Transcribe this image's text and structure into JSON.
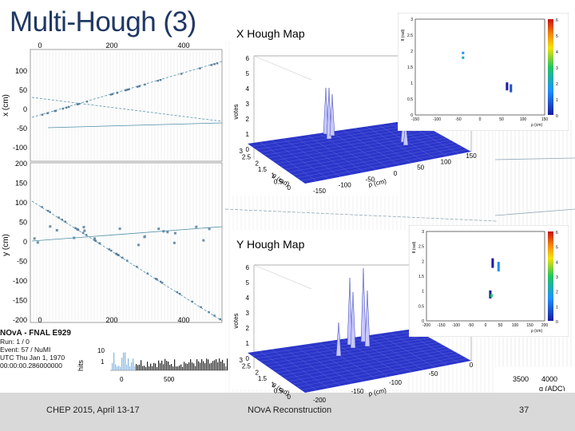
{
  "slide": {
    "title": "Multi-Hough (3)",
    "footer_left": "CHEP 2015, April 13-17",
    "footer_center": "NOvA Reconstruction",
    "page_number": "37"
  },
  "hough_x": {
    "label": "X Hough Map"
  },
  "hough_y": {
    "label": "Y Hough Map"
  },
  "event_display": {
    "top_view": {
      "ylabel": "x (cm)",
      "x_ticks": [
        "0",
        "200",
        "400"
      ],
      "y_ticks": [
        "100",
        "50",
        "0",
        "-50",
        "-100"
      ]
    },
    "side_view": {
      "ylabel": "y (cm)",
      "x_ticks": [
        "0",
        "200",
        "400"
      ],
      "y_ticks": [
        "200",
        "150",
        "100",
        "50",
        "0",
        "-50",
        "-100",
        "-150",
        "-200"
      ]
    },
    "info": {
      "experiment": "NOvA - FNAL E929",
      "run": "Run: 1 / 0",
      "event": "Event: 57 / NuMI",
      "utc": "UTC Thu Jan 1, 1970",
      "time": "00:00:00.286000000"
    },
    "adc_hist": {
      "ylabel": "hits",
      "xlabel": "q (ADC)",
      "x_ticks": [
        "0",
        "500",
        "3500",
        "4000"
      ],
      "y_ticks": [
        "10",
        "1"
      ]
    }
  },
  "lego_x": {
    "zlabel": "votes",
    "z_ticks": [
      "6",
      "5",
      "4",
      "3",
      "2",
      "1",
      "0"
    ],
    "theta_label": "θ (rad)",
    "rho_label": "ρ (cm)",
    "theta_ticks": [
      "3",
      "2.5",
      "2",
      "1.5",
      "1",
      "0.5",
      "0"
    ],
    "rho_ticks": [
      "-150",
      "-100",
      "-50",
      "0",
      "50",
      "100",
      "150"
    ]
  },
  "lego_y": {
    "zlabel": "votes",
    "z_ticks": [
      "6",
      "5",
      "4",
      "3",
      "2",
      "1",
      "0"
    ],
    "theta_label": "θ (rad)",
    "rho_label": "ρ (cm)",
    "theta_ticks": [
      "3",
      "2.5",
      "2",
      "1.5",
      "1",
      "0.5",
      "0"
    ],
    "rho_ticks": [
      "-200",
      "-150",
      "-100",
      "-50",
      "0"
    ]
  },
  "map_x": {
    "ylabel": "θ (rad)",
    "xlabel": "ρ (cm)",
    "y_ticks": [
      "3",
      "2.5",
      "2",
      "1.5",
      "1",
      "0.5",
      "0"
    ],
    "x_ticks": [
      "-150",
      "-100",
      "-50",
      "0",
      "50",
      "100",
      "150"
    ],
    "colorbar_ticks": [
      "6",
      "5",
      "4",
      "3",
      "2",
      "1",
      "0"
    ]
  },
  "map_y": {
    "ylabel": "θ (rad)",
    "xlabel": "ρ (cm)",
    "y_ticks": [
      "3",
      "2.5",
      "2",
      "1.5",
      "1",
      "0.5",
      "0"
    ],
    "x_ticks": [
      "-200",
      "-150",
      "-100",
      "-50",
      "0",
      "50",
      "100",
      "150",
      "200"
    ],
    "colorbar_ticks": [
      "6",
      "5",
      "4",
      "3",
      "2",
      "1",
      "0"
    ]
  },
  "colors": {
    "title": "#1f3864",
    "lego_surface": "#2b35c9",
    "lego_peak": "#c8c8ff",
    "track": "#4f8fa8",
    "hit": "#5a7a9a",
    "footer_bar": "#d9d9d9"
  }
}
